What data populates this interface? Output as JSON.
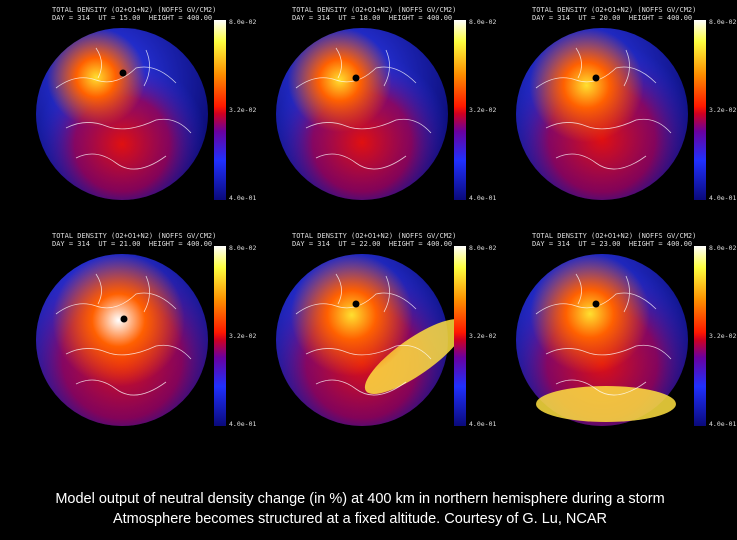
{
  "panels": [
    {
      "header": "TOTAL DENSITY (O2+O1+N2) (NOFFS GV/CM2)\nDAY = 314  UT = 15.00  HEIGHT = 400.00",
      "cbar_top": "8.0e-02",
      "cbar_mid": "3.2e-02",
      "cbar_bot": "4.0e-01",
      "intensity": 0.25
    },
    {
      "header": "TOTAL DENSITY (O2+O1+N2) (NOFFS GV/CM2)\nDAY = 314  UT = 18.00  HEIGHT = 400.00",
      "cbar_top": "8.0e-02",
      "cbar_mid": "3.2e-02",
      "cbar_bot": "4.0e-01",
      "intensity": 0.35
    },
    {
      "header": "TOTAL DENSITY (O2+O1+N2) (NOFFS GV/CM2)\nDAY = 314  UT = 20.00  HEIGHT = 400.00",
      "cbar_top": "8.0e-02",
      "cbar_mid": "3.2e-02",
      "cbar_bot": "4.0e-01",
      "intensity": 0.55
    },
    {
      "header": "TOTAL DENSITY (O2+O1+N2) (NOFFS GV/CM2)\nDAY = 314  UT = 21.00  HEIGHT = 400.00",
      "cbar_top": "8.0e-02",
      "cbar_mid": "3.2e-02",
      "cbar_bot": "4.0e-01",
      "intensity": 0.9
    },
    {
      "header": "TOTAL DENSITY (O2+O1+N2) (NOFFS GV/CM2)\nDAY = 314  UT = 22.00  HEIGHT = 400.00",
      "cbar_top": "8.0e-02",
      "cbar_mid": "3.2e-02",
      "cbar_bot": "4.0e-01",
      "intensity": 0.7
    },
    {
      "header": "TOTAL DENSITY (O2+O1+N2) (NOFFS GV/CM2)\nDAY = 314  UT = 23.00  HEIGHT = 400.00",
      "cbar_top": "8.0e-02",
      "cbar_mid": "3.2e-02",
      "cbar_bot": "4.0e-01",
      "intensity": 0.65
    }
  ],
  "caption": {
    "line1": "Model output of neutral density change (in %)  at 400 km in northern hemisphere during a storm",
    "line2": "Atmosphere becomes structured at a fixed altitude.        Courtesy of G. Lu, NCAR"
  }
}
